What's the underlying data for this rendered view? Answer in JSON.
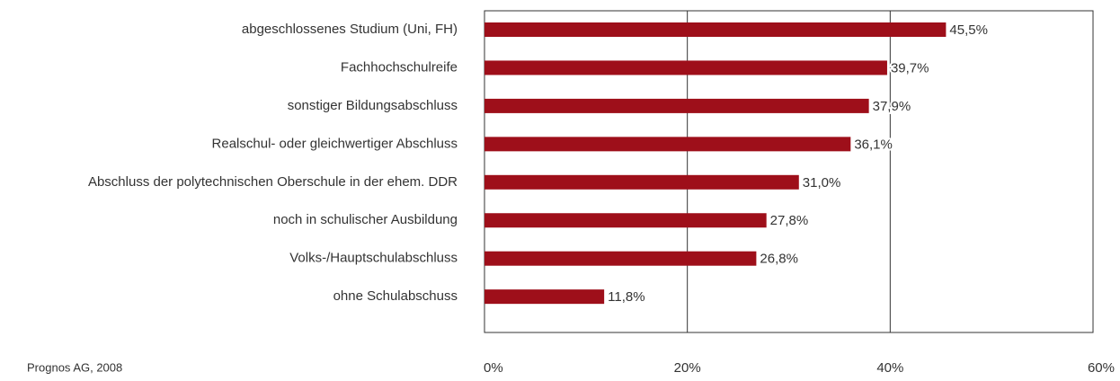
{
  "chart_data": {
    "type": "bar",
    "orientation": "horizontal",
    "categories": [
      "abgeschlossenes Studium (Uni, FH)",
      "Fachhochschulreife",
      "sonstiger Bildungsabschluss",
      "Realschul- oder gleichwertiger Abschluss",
      "Abschluss der polytechnischen Oberschule in der ehem. DDR",
      "noch in schulischer Ausbildung",
      "Volks-/Hauptschulabschluss",
      "ohne Schulabschuss"
    ],
    "values": [
      45.5,
      39.7,
      37.9,
      36.1,
      31.0,
      27.8,
      26.8,
      11.8
    ],
    "value_labels": [
      "45,5%",
      "39,7%",
      "37,9%",
      "36,1%",
      "31,0%",
      "27,8%",
      "26,8%",
      "11,8%"
    ],
    "color": "#9e0f1a",
    "xlim": [
      0,
      60
    ],
    "xticks": [
      {
        "value": 0,
        "label": "0%"
      },
      {
        "value": 20,
        "label": "20%"
      },
      {
        "value": 40,
        "label": "40%"
      },
      {
        "value": 60,
        "label": "60%"
      }
    ],
    "grid": true,
    "source": "Prognos AG, 2008"
  }
}
